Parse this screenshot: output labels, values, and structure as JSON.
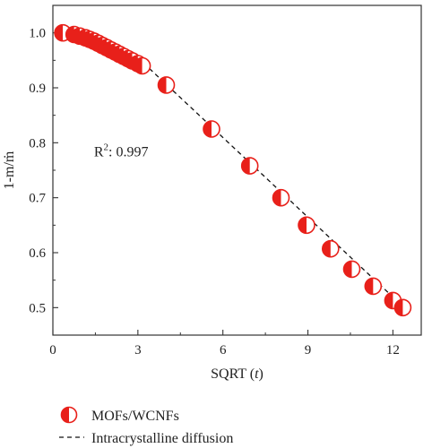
{
  "chart_data": {
    "type": "scatter",
    "xlabel_prefix": "SQRT (",
    "xlabel_var": "t",
    "xlabel_suffix": ")",
    "ylabel": "1-m/ṁ",
    "xlim": [
      0,
      13
    ],
    "ylim": [
      0.45,
      1.05
    ],
    "xticks": [
      0,
      3,
      6,
      9,
      12
    ],
    "yticks": [
      0.5,
      0.6,
      0.7,
      0.8,
      0.9,
      1.0
    ],
    "ytick_labels": [
      "0.5",
      "0.6",
      "0.7",
      "0.8",
      "0.9",
      "1.0"
    ],
    "annotation": {
      "base": "R",
      "sup": "2",
      "rest": ": 0.997"
    },
    "colors": {
      "marker": "#e8201a",
      "fit": "#111111",
      "axis": "#333333"
    },
    "series": [
      {
        "name": "MOFs/WCNFs",
        "kind": "scatter",
        "marker": "half-filled-circle",
        "x": [
          0.35,
          0.75,
          0.95,
          1.15,
          1.3,
          1.45,
          1.6,
          1.75,
          1.9,
          2.05,
          2.2,
          2.35,
          2.5,
          2.65,
          2.8,
          3.0,
          3.15,
          4.0,
          5.6,
          6.95,
          8.05,
          8.95,
          9.8,
          10.55,
          11.3,
          12.0,
          12.35
        ],
        "y": [
          1.0,
          0.997,
          0.994,
          0.991,
          0.988,
          0.985,
          0.981,
          0.977,
          0.973,
          0.969,
          0.965,
          0.961,
          0.957,
          0.953,
          0.949,
          0.944,
          0.94,
          0.905,
          0.825,
          0.758,
          0.7,
          0.65,
          0.607,
          0.57,
          0.539,
          0.513,
          0.5
        ]
      },
      {
        "name": "Intracrystalline diffusion",
        "kind": "line",
        "style": "dashed",
        "x": [
          0.3,
          1.0,
          2.0,
          2.8,
          3.2,
          12.4
        ],
        "y": [
          1.0,
          0.996,
          0.98,
          0.96,
          0.945,
          0.5
        ]
      }
    ],
    "legend": {
      "position": "bottom-left"
    }
  }
}
